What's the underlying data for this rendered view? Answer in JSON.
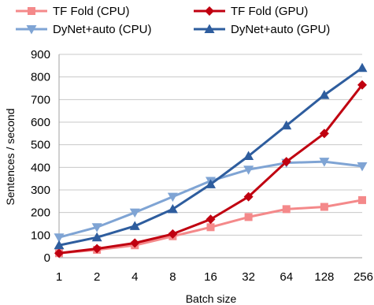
{
  "chart_data": {
    "type": "line",
    "categories": [
      "1",
      "2",
      "4",
      "8",
      "16",
      "32",
      "64",
      "128",
      "256"
    ],
    "xlabel": "Batch size",
    "ylabel": "Sentences / second",
    "ylim": [
      0,
      900
    ],
    "yticks": [
      "0",
      "100",
      "200",
      "300",
      "400",
      "500",
      "600",
      "700",
      "800",
      "900"
    ],
    "grid": true,
    "legend_placement": "top",
    "series": [
      {
        "name": "TF Fold (CPU)",
        "color": "#f4898a",
        "marker": "square",
        "values": [
          20,
          35,
          55,
          95,
          135,
          180,
          215,
          225,
          255
        ]
      },
      {
        "name": "TF Fold (GPU)",
        "color": "#c00010",
        "marker": "diamond",
        "values": [
          20,
          40,
          65,
          105,
          170,
          270,
          425,
          550,
          765
        ]
      },
      {
        "name": "DyNet+auto (CPU)",
        "color": "#7fa4d4",
        "marker": "triangle-down",
        "values": [
          90,
          135,
          200,
          270,
          340,
          390,
          420,
          425,
          405
        ]
      },
      {
        "name": "DyNet+auto (GPU)",
        "color": "#2e5d9e",
        "marker": "triangle-up",
        "values": [
          55,
          90,
          140,
          215,
          325,
          450,
          585,
          720,
          840
        ]
      }
    ]
  }
}
